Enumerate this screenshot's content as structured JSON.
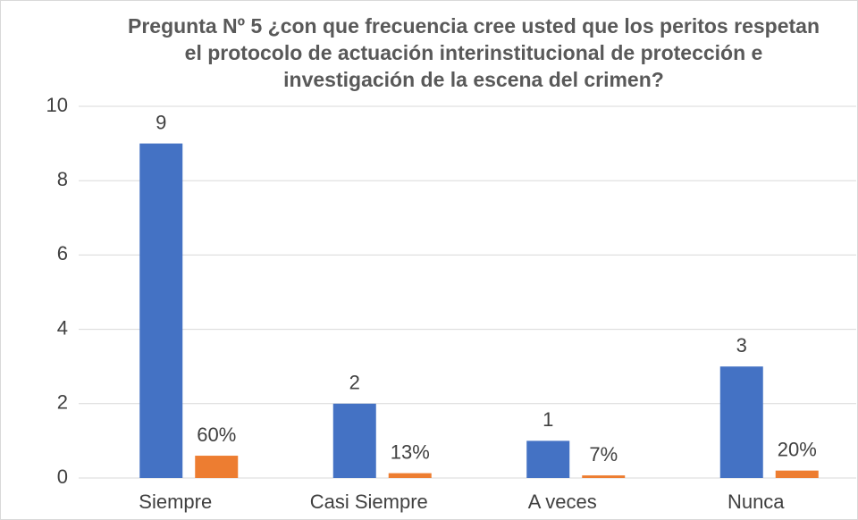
{
  "chart_data": {
    "type": "bar",
    "title": "Pregunta Nº 5 ¿con que frecuencia cree usted que los peritos respetan el protocolo de actuación interinstitucional de protección e investigación de la escena del crimen?",
    "categories": [
      "Siempre",
      "Casi Siempre",
      "A veces",
      "Nunca"
    ],
    "series": [
      {
        "color": "#4472c4",
        "values": [
          9,
          2,
          1,
          3
        ]
      },
      {
        "color": "#ed7d31",
        "values": [
          0.6,
          0.13,
          0.07,
          0.2
        ],
        "value_labels": [
          "60%",
          "13%",
          "7%",
          "20%"
        ]
      }
    ],
    "ylim": [
      0,
      10
    ],
    "yticks": [
      0,
      2,
      4,
      6,
      8,
      10
    ],
    "grid": true
  }
}
